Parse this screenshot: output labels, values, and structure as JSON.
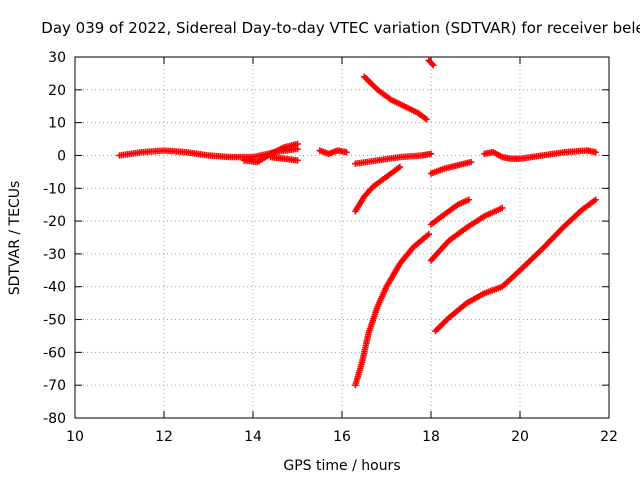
{
  "chart_data": {
    "type": "scatter",
    "title": "Day 039 of 2022, Sidereal Day-to-day VTEC variation (SDTVAR) for receiver bele",
    "xlabel": "GPS time / hours",
    "ylabel": "SDTVAR / TECUs",
    "xlim": [
      10,
      22
    ],
    "ylim": [
      -80,
      30
    ],
    "xticks": [
      "10",
      "12",
      "14",
      "16",
      "18",
      "20",
      "22"
    ],
    "yticks": [
      "30",
      "20",
      "10",
      "0",
      "-10",
      "-20",
      "-30",
      "-40",
      "-50",
      "-60",
      "-70",
      "-80"
    ],
    "grid": true,
    "marker": "+",
    "color": "#ff0000",
    "series": [
      {
        "x": [
          11.0,
          11.5,
          12.0,
          12.5,
          13.0,
          13.5,
          14.0,
          14.5,
          15.0
        ],
        "y": [
          0.0,
          1.0,
          1.5,
          1.0,
          0.0,
          -0.5,
          -0.5,
          1.0,
          2.0
        ]
      },
      {
        "x": [
          13.8,
          14.1,
          14.4,
          14.7,
          15.0
        ],
        "y": [
          -1.5,
          -2.0,
          0.5,
          2.5,
          3.5
        ]
      },
      {
        "x": [
          14.4,
          14.7,
          15.0
        ],
        "y": [
          -0.5,
          -1.0,
          -1.5
        ]
      },
      {
        "x": [
          15.5,
          15.7,
          15.9,
          16.1
        ],
        "y": [
          1.5,
          0.5,
          1.5,
          1.0
        ]
      },
      {
        "x": [
          16.3,
          16.8,
          17.3,
          17.8,
          18.0
        ],
        "y": [
          -2.5,
          -1.5,
          -0.5,
          0.0,
          0.5
        ]
      },
      {
        "x": [
          16.5,
          16.8,
          17.1,
          17.4,
          17.7,
          17.9
        ],
        "y": [
          24.0,
          20.0,
          17.0,
          15.0,
          13.0,
          11.0
        ]
      },
      {
        "x": [
          17.95,
          18.05
        ],
        "y": [
          29.0,
          27.5
        ]
      },
      {
        "x": [
          16.3,
          16.5,
          16.7,
          17.0,
          17.3
        ],
        "y": [
          -17.0,
          -12.5,
          -9.5,
          -6.5,
          -3.5
        ]
      },
      {
        "x": [
          16.3,
          16.45,
          16.6,
          16.8,
          17.0,
          17.3,
          17.6,
          17.95
        ],
        "y": [
          -70.0,
          -63.0,
          -54.0,
          -46.0,
          -40.0,
          -33.0,
          -28.0,
          -24.0
        ]
      },
      {
        "x": [
          18.0,
          18.3,
          18.6,
          18.9
        ],
        "y": [
          -5.5,
          -4.0,
          -3.0,
          -2.0
        ]
      },
      {
        "x": [
          19.2,
          19.4,
          19.6,
          19.8,
          20.0,
          20.5,
          21.0,
          21.5,
          21.7
        ],
        "y": [
          0.5,
          1.0,
          -0.5,
          -1.0,
          -1.0,
          0.0,
          1.0,
          1.5,
          1.0
        ]
      },
      {
        "x": [
          18.0,
          18.3,
          18.6,
          18.85
        ],
        "y": [
          -21.0,
          -18.0,
          -15.0,
          -13.5
        ]
      },
      {
        "x": [
          18.0,
          18.4,
          18.8,
          19.2,
          19.6
        ],
        "y": [
          -32.0,
          -26.0,
          -22.0,
          -18.5,
          -16.0
        ]
      },
      {
        "x": [
          18.1,
          18.4,
          18.8,
          19.2,
          19.6,
          20.0,
          20.5,
          21.0,
          21.4,
          21.7
        ],
        "y": [
          -53.5,
          -49.5,
          -45.0,
          -42.0,
          -40.0,
          -35.0,
          -28.5,
          -21.5,
          -16.5,
          -13.5
        ]
      }
    ]
  }
}
